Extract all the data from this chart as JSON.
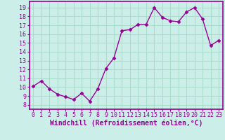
{
  "x": [
    0,
    1,
    2,
    3,
    4,
    5,
    6,
    7,
    8,
    9,
    10,
    11,
    12,
    13,
    14,
    15,
    16,
    17,
    18,
    19,
    20,
    21,
    22,
    23
  ],
  "y": [
    10.1,
    10.7,
    9.8,
    9.2,
    8.9,
    8.6,
    9.3,
    8.4,
    9.8,
    12.1,
    13.3,
    16.4,
    16.5,
    17.1,
    17.1,
    19.0,
    17.9,
    17.5,
    17.4,
    18.5,
    19.0,
    17.7,
    14.7,
    15.3
  ],
  "line_color": "#990099",
  "marker": "D",
  "marker_size": 2.5,
  "xlabel": "Windchill (Refroidissement éolien,°C)",
  "xlabel_fontsize": 7,
  "ylabel_ticks": [
    8,
    9,
    10,
    11,
    12,
    13,
    14,
    15,
    16,
    17,
    18,
    19
  ],
  "xticks": [
    0,
    1,
    2,
    3,
    4,
    5,
    6,
    7,
    8,
    9,
    10,
    11,
    12,
    13,
    14,
    15,
    16,
    17,
    18,
    19,
    20,
    21,
    22,
    23
  ],
  "ylim": [
    7.5,
    19.7
  ],
  "xlim": [
    -0.5,
    23.5
  ],
  "bg_color": "#cceee8",
  "grid_color": "#aaddcc",
  "border_color": "#990099",
  "tick_label_fontsize": 6,
  "linewidth": 1.0
}
